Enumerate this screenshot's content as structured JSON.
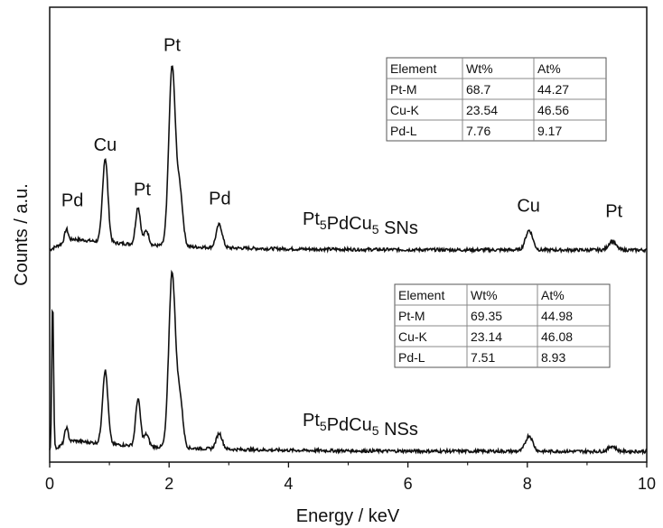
{
  "chart_data": {
    "type": "line",
    "xlabel": "Energy / keV",
    "ylabel": "Counts / a.u.",
    "xlim": [
      0,
      10
    ],
    "xticks": [
      "0",
      "2",
      "4",
      "6",
      "8",
      "10"
    ],
    "legend": "none",
    "grid": false,
    "line_color": "#111111",
    "series": [
      {
        "name": "Pt5PdCu5 SNs",
        "label_main": "Pt",
        "label_sub1": "5",
        "label_mid": "PdCu",
        "label_sub2": "5",
        "label_tail": " SNs",
        "baseline": 0.0,
        "peaks": [
          {
            "x": 0.28,
            "y": 0.07,
            "w": 0.03
          },
          {
            "x": 0.93,
            "y": 0.47,
            "w": 0.045
          },
          {
            "x": 1.48,
            "y": 0.21,
            "w": 0.04
          },
          {
            "x": 1.62,
            "y": 0.08,
            "w": 0.04
          },
          {
            "x": 2.05,
            "y": 1.0,
            "w": 0.055
          },
          {
            "x": 2.18,
            "y": 0.3,
            "w": 0.05
          },
          {
            "x": 2.84,
            "y": 0.13,
            "w": 0.05
          },
          {
            "x": 8.03,
            "y": 0.11,
            "w": 0.06
          },
          {
            "x": 9.42,
            "y": 0.05,
            "w": 0.06
          }
        ],
        "annotations": [
          {
            "text": "Pd",
            "x": 0.38,
            "y": 0.26
          },
          {
            "text": "Cu",
            "x": 0.93,
            "y": 0.57
          },
          {
            "text": "Pt",
            "x": 1.55,
            "y": 0.32
          },
          {
            "text": "Pt",
            "x": 2.05,
            "y": 1.13
          },
          {
            "text": "Pd",
            "x": 2.85,
            "y": 0.27
          },
          {
            "text": "Cu",
            "x": 8.02,
            "y": 0.23
          },
          {
            "text": "Pt",
            "x": 9.45,
            "y": 0.2
          }
        ],
        "table": {
          "headers": [
            "Element",
            "Wt%",
            "At%"
          ],
          "rows": [
            [
              "Pt-M",
              "68.7",
              "44.27"
            ],
            [
              "Cu-K",
              "23.54",
              "46.56"
            ],
            [
              "Pd-L",
              "7.76",
              "9.17"
            ]
          ]
        }
      },
      {
        "name": "Pt5PdCu5 NSs",
        "label_main": "Pt",
        "label_sub1": "5",
        "label_mid": "PdCu",
        "label_sub2": "5",
        "label_tail": " NSs",
        "baseline": 0.0,
        "peaks": [
          {
            "x": 0.05,
            "y": 0.85,
            "w": 0.015
          },
          {
            "x": 0.28,
            "y": 0.09,
            "w": 0.03
          },
          {
            "x": 0.93,
            "y": 0.42,
            "w": 0.045
          },
          {
            "x": 1.48,
            "y": 0.27,
            "w": 0.04
          },
          {
            "x": 1.62,
            "y": 0.07,
            "w": 0.04
          },
          {
            "x": 2.05,
            "y": 1.0,
            "w": 0.055
          },
          {
            "x": 2.18,
            "y": 0.28,
            "w": 0.05
          },
          {
            "x": 2.84,
            "y": 0.09,
            "w": 0.05
          },
          {
            "x": 8.03,
            "y": 0.09,
            "w": 0.06
          },
          {
            "x": 9.42,
            "y": 0.03,
            "w": 0.06
          }
        ],
        "annotations": [],
        "table": {
          "headers": [
            "Element",
            "Wt%",
            "At%"
          ],
          "rows": [
            [
              "Pt-M",
              "69.35",
              "44.98"
            ],
            [
              "Cu-K",
              "23.14",
              "46.08"
            ],
            [
              "Pd-L",
              "7.51",
              "8.93"
            ]
          ]
        }
      }
    ]
  }
}
